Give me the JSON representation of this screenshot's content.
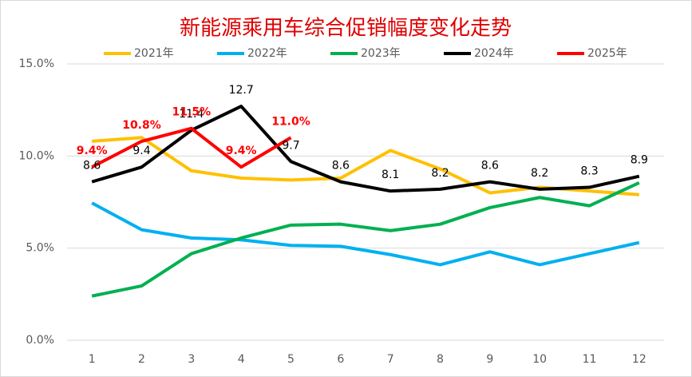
{
  "chart_data": {
    "type": "line",
    "title": "新能源乘用车综合促销幅度变化走势",
    "categories": [
      "1",
      "2",
      "3",
      "4",
      "5",
      "6",
      "7",
      "8",
      "9",
      "10",
      "11",
      "12"
    ],
    "ylim": [
      0,
      15
    ],
    "yticks": [
      {
        "value": 0,
        "label": "0.0%"
      },
      {
        "value": 5,
        "label": "5.0%"
      },
      {
        "value": 10,
        "label": "10.0%"
      },
      {
        "value": 15,
        "label": "15.0%"
      }
    ],
    "grid": true,
    "legend": "top",
    "series": [
      {
        "name": "2021年",
        "color": "#FFC000",
        "values": [
          10.8,
          11.0,
          9.2,
          8.8,
          8.7,
          8.8,
          10.3,
          9.3,
          8.0,
          8.3,
          8.1,
          7.9
        ]
      },
      {
        "name": "2022年",
        "color": "#00B0F0",
        "values": [
          7.45,
          6.0,
          5.55,
          5.45,
          5.15,
          5.1,
          4.65,
          4.1,
          4.8,
          4.1,
          4.7,
          5.3
        ]
      },
      {
        "name": "2023年",
        "color": "#00B050",
        "values": [
          2.4,
          2.95,
          4.7,
          5.55,
          6.25,
          6.3,
          5.95,
          6.3,
          7.2,
          7.75,
          7.3,
          8.55
        ]
      },
      {
        "name": "2024年",
        "color": "#000000",
        "data_labels": true,
        "values": [
          8.6,
          9.4,
          11.4,
          12.7,
          9.7,
          8.6,
          8.1,
          8.2,
          8.6,
          8.2,
          8.3,
          8.9
        ]
      },
      {
        "name": "2025年",
        "color": "#FF0000",
        "data_labels": true,
        "values": [
          9.4,
          10.8,
          11.5,
          9.4,
          11.0,
          null,
          null,
          null,
          null,
          null,
          null,
          null
        ],
        "value_labels": [
          "9.4%",
          "10.8%",
          "11.5%",
          "9.4%",
          "11.0%",
          null,
          null,
          null,
          null,
          null,
          null,
          null
        ]
      }
    ]
  }
}
